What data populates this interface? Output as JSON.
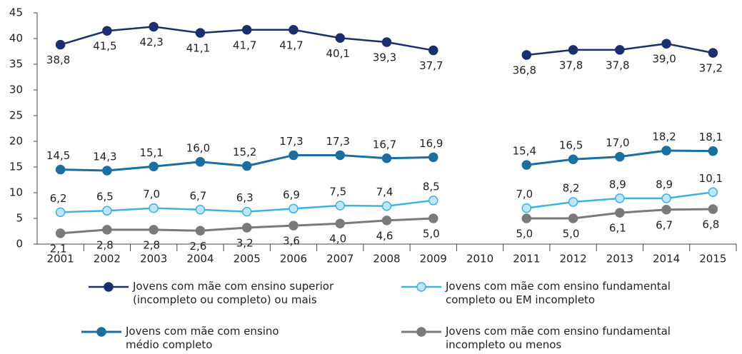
{
  "chart_data": {
    "type": "line",
    "categories": [
      "2001",
      "2002",
      "2003",
      "2004",
      "2005",
      "2006",
      "2007",
      "2008",
      "2009",
      "2010",
      "2011",
      "2012",
      "2013",
      "2014",
      "2015"
    ],
    "ylim": [
      0,
      45
    ],
    "yticks": [
      0,
      5,
      10,
      15,
      20,
      25,
      30,
      35,
      40,
      45
    ],
    "grid": false,
    "series": [
      {
        "name": "Jovens com mãe com ensino superior (incompleto ou completo) ou mais",
        "color": "#1b2f6e",
        "values": [
          38.8,
          41.5,
          42.3,
          41.1,
          41.7,
          41.7,
          40.1,
          39.3,
          37.7,
          null,
          36.8,
          37.8,
          37.8,
          39.0,
          37.2
        ],
        "value_labels": [
          "38,8",
          "41,5",
          "42,3",
          "41,1",
          "41,7",
          "41,7",
          "40,1",
          "39,3",
          "37,7",
          null,
          "36,8",
          "37,8",
          "37,8",
          "39,0",
          "37,2"
        ]
      },
      {
        "name": "Jovens com mãe com ensino médio completo",
        "color": "#1a6fa0",
        "values": [
          14.5,
          14.3,
          15.1,
          16.0,
          15.2,
          17.3,
          17.3,
          16.7,
          16.9,
          null,
          15.4,
          16.5,
          17.0,
          18.2,
          18.1
        ],
        "value_labels": [
          "14,5",
          "14,3",
          "15,1",
          "16,0",
          "15,2",
          "17,3",
          "17,3",
          "16,7",
          "16,9",
          null,
          "15,4",
          "16,5",
          "17,0",
          "18,2",
          "18,1"
        ]
      },
      {
        "name": "Jovens com mãe com ensino fundamental completo ou EM incompleto",
        "color": "#3bb5e0",
        "values": [
          6.2,
          6.5,
          7.0,
          6.7,
          6.3,
          6.9,
          7.5,
          7.4,
          8.5,
          null,
          7.0,
          8.2,
          8.9,
          8.9,
          10.1
        ],
        "value_labels": [
          "6,2",
          "6,5",
          "7,0",
          "6,7",
          "6,3",
          "6,9",
          "7,5",
          "7,4",
          "8,5",
          null,
          "7,0",
          "8,2",
          "8,9",
          "8,9",
          "10,1"
        ]
      },
      {
        "name": "Jovens com mãe com ensino fundamental incompleto ou menos",
        "color": "#7a7a7a",
        "values": [
          2.1,
          2.8,
          2.8,
          2.6,
          3.2,
          3.6,
          4.0,
          4.6,
          5.0,
          null,
          5.0,
          5.0,
          6.1,
          6.7,
          6.8
        ],
        "value_labels": [
          "2,1",
          "2,8",
          "2,8",
          "2,6",
          "3,2",
          "3,6",
          "4,0",
          "4,6",
          "5,0",
          null,
          "5,0",
          "5,0",
          "6,1",
          "6,7",
          "6,8"
        ]
      }
    ]
  }
}
